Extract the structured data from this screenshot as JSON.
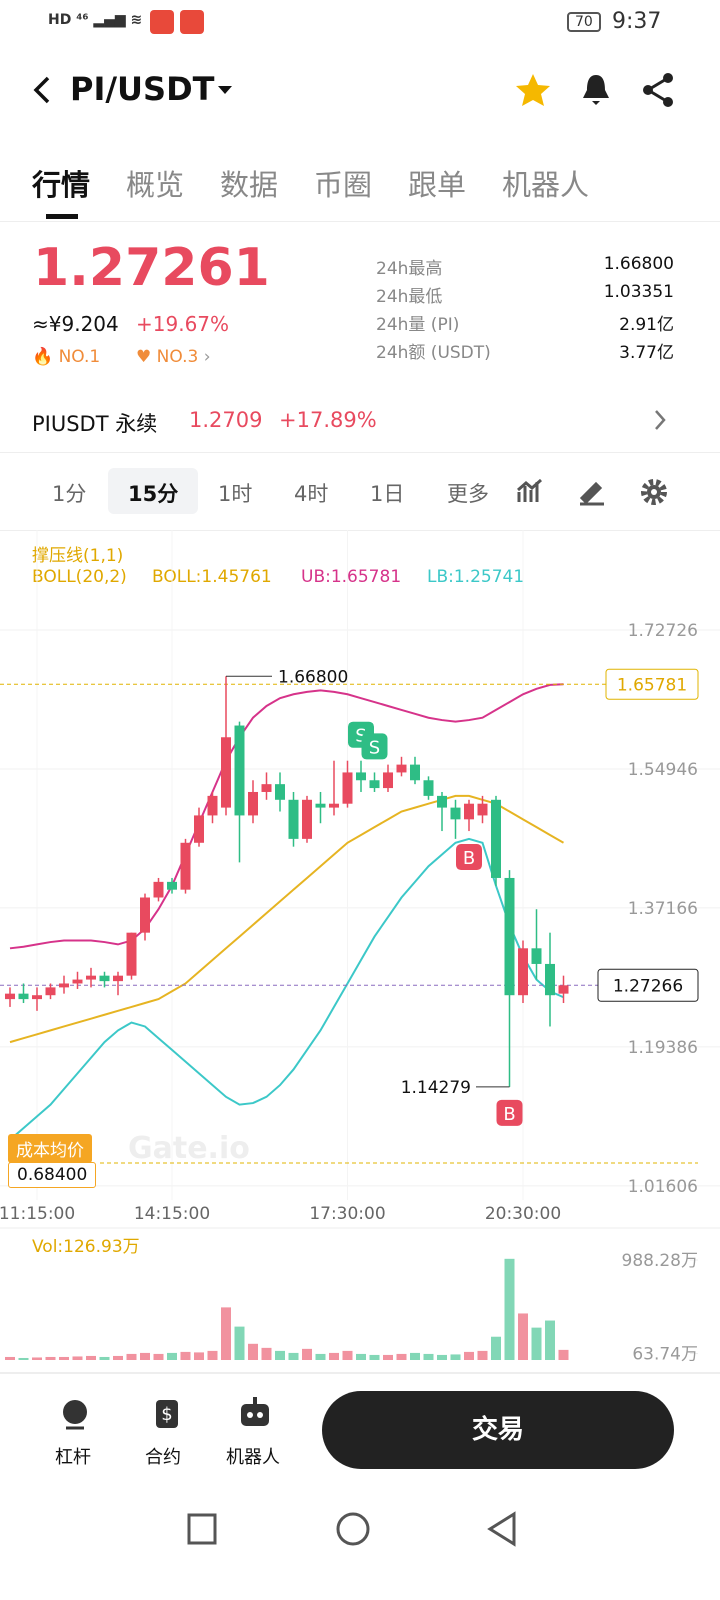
{
  "status_bar": {
    "time": "9:37",
    "battery": "70"
  },
  "header": {
    "pair": "PI/USDT"
  },
  "tabs": [
    "行情",
    "概览",
    "数据",
    "币圈",
    "跟单",
    "机器人"
  ],
  "price": {
    "last": "1.27261",
    "cny": "≈¥9.204",
    "change": "+19.67%",
    "rank1": "NO.1",
    "rank2": "NO.3"
  },
  "stats": [
    {
      "label": "24h最高",
      "value": "1.66800"
    },
    {
      "label": "24h最低",
      "value": "1.03351"
    },
    {
      "label": "24h量 (PI)",
      "value": "2.91亿"
    },
    {
      "label": "24h额 (USDT)",
      "value": "3.77亿"
    }
  ],
  "perpetual": {
    "name": "PIUSDT 永续",
    "price": "1.2709",
    "change": "+17.89%"
  },
  "intervals": [
    "1分",
    "15分",
    "1时",
    "4时",
    "1日",
    "更多"
  ],
  "indicators": {
    "support": "撑压线(1,1)",
    "boll": "BOLL(20,2)",
    "mid": "BOLL:1.45761",
    "ub": "UB:1.65781",
    "lb": "LB:1.25741"
  },
  "chart_data": {
    "type": "candlestick",
    "categories": [
      null,
      null,
      "11:15:00",
      null,
      null,
      null,
      null,
      null,
      null,
      null,
      null,
      null,
      "14:15:00",
      null,
      null,
      null,
      null,
      null,
      null,
      null,
      null,
      null,
      null,
      null,
      null,
      "17:30:00",
      null,
      null,
      null,
      null,
      null,
      null,
      null,
      null,
      null,
      null,
      null,
      null,
      "20:30:00",
      null,
      null,
      null
    ],
    "open": [
      1.255,
      1.262,
      1.255,
      1.26,
      1.27,
      1.275,
      1.28,
      1.285,
      1.278,
      1.285,
      1.34,
      1.385,
      1.405,
      1.395,
      1.455,
      1.49,
      1.5,
      1.605,
      1.49,
      1.52,
      1.53,
      1.51,
      1.46,
      1.505,
      1.5,
      1.505,
      1.545,
      1.535,
      1.525,
      1.545,
      1.555,
      1.535,
      1.515,
      1.5,
      1.485,
      1.49,
      1.51,
      1.41,
      1.26,
      1.32,
      1.3,
      1.262
    ],
    "high": [
      1.27,
      1.275,
      1.27,
      1.275,
      1.285,
      1.29,
      1.295,
      1.29,
      1.29,
      1.34,
      1.39,
      1.41,
      1.41,
      1.46,
      1.5,
      1.52,
      1.668,
      1.61,
      1.535,
      1.545,
      1.545,
      1.52,
      1.515,
      1.52,
      1.56,
      1.56,
      1.56,
      1.545,
      1.555,
      1.565,
      1.565,
      1.54,
      1.52,
      1.51,
      1.51,
      1.515,
      1.515,
      1.42,
      1.33,
      1.37,
      1.34,
      1.285
    ],
    "low": [
      1.245,
      1.25,
      1.24,
      1.255,
      1.262,
      1.268,
      1.27,
      1.27,
      1.26,
      1.28,
      1.33,
      1.38,
      1.39,
      1.39,
      1.45,
      1.48,
      1.49,
      1.43,
      1.48,
      1.51,
      1.495,
      1.45,
      1.455,
      1.48,
      1.49,
      1.5,
      1.52,
      1.52,
      1.52,
      1.54,
      1.53,
      1.51,
      1.47,
      1.46,
      1.47,
      1.48,
      1.4,
      1.14279,
      1.25,
      1.28,
      1.22,
      1.25
    ],
    "close": [
      1.262,
      1.255,
      1.26,
      1.27,
      1.275,
      1.28,
      1.285,
      1.278,
      1.285,
      1.34,
      1.385,
      1.405,
      1.395,
      1.455,
      1.49,
      1.515,
      1.59,
      1.49,
      1.52,
      1.53,
      1.51,
      1.46,
      1.51,
      1.5,
      1.505,
      1.545,
      1.535,
      1.525,
      1.545,
      1.555,
      1.535,
      1.515,
      1.5,
      1.485,
      1.505,
      1.505,
      1.41,
      1.26,
      1.32,
      1.3,
      1.26,
      1.27266
    ],
    "up_color": "#e84a5f",
    "down_color": "#2ebd85",
    "lines": [
      {
        "color": "#e6b422",
        "values": [
          1.2,
          1.205,
          1.21,
          1.215,
          1.22,
          1.225,
          1.23,
          1.235,
          1.24,
          1.245,
          1.25,
          1.255,
          1.265,
          1.275,
          1.29,
          1.305,
          1.32,
          1.335,
          1.35,
          1.365,
          1.38,
          1.395,
          1.41,
          1.425,
          1.44,
          1.455,
          1.465,
          1.475,
          1.485,
          1.495,
          1.5,
          1.505,
          1.51,
          1.515,
          1.515,
          1.51,
          1.505,
          1.495,
          1.485,
          1.475,
          1.465,
          1.455
        ]
      },
      {
        "color": "#d6338a",
        "values": [
          1.32,
          1.322,
          1.325,
          1.328,
          1.33,
          1.33,
          1.33,
          1.328,
          1.325,
          1.33,
          1.345,
          1.37,
          1.4,
          1.44,
          1.48,
          1.52,
          1.56,
          1.59,
          1.615,
          1.63,
          1.64,
          1.645,
          1.648,
          1.65,
          1.648,
          1.645,
          1.64,
          1.635,
          1.63,
          1.625,
          1.62,
          1.615,
          1.612,
          1.61,
          1.612,
          1.615,
          1.625,
          1.635,
          1.645,
          1.652,
          1.657,
          1.6578
        ]
      },
      {
        "color": "#3cc8c8",
        "values": [
          1.075,
          1.09,
          1.105,
          1.12,
          1.14,
          1.16,
          1.18,
          1.2,
          1.215,
          1.225,
          1.22,
          1.205,
          1.19,
          1.175,
          1.16,
          1.145,
          1.13,
          1.12,
          1.122,
          1.13,
          1.145,
          1.165,
          1.19,
          1.215,
          1.245,
          1.275,
          1.305,
          1.335,
          1.36,
          1.385,
          1.405,
          1.425,
          1.44,
          1.455,
          1.46,
          1.455,
          1.4,
          1.35,
          1.31,
          1.28,
          1.265,
          1.2574
        ]
      }
    ],
    "ylim": [
      0.998,
      1.7656
    ],
    "yticks": [
      1.01606,
      1.19386,
      1.37166,
      1.54946,
      1.72726
    ],
    "high_mark": {
      "value": 1.668,
      "label": "1.66800"
    },
    "low_mark": 1.14279,
    "last_price": 1.27266,
    "ub_price": 1.65781,
    "trades": [
      {
        "candle": 26,
        "label": "S"
      },
      {
        "candle": 27,
        "label": "S"
      },
      {
        "candle": 34,
        "label": "B"
      },
      {
        "candle": 37,
        "label": "B"
      }
    ],
    "cost_avg": {
      "title": "成本均价",
      "value": "0.68400"
    },
    "watermark": "Gate.io",
    "volume_label": "Vol:126.93万",
    "volume": [
      30,
      20,
      25,
      30,
      30,
      35,
      40,
      30,
      40,
      60,
      70,
      60,
      70,
      80,
      75,
      90,
      520,
      330,
      160,
      120,
      90,
      70,
      110,
      60,
      70,
      90,
      60,
      50,
      50,
      60,
      70,
      60,
      50,
      55,
      80,
      90,
      230,
      1000,
      460,
      320,
      390,
      100
    ],
    "volume_ylim": [
      0,
      1186
    ],
    "volume_ticks": [
      {
        "value": 63.74,
        "label": "63.74万"
      },
      {
        "value": 988.28,
        "label": "988.28万"
      }
    ]
  },
  "bottom_bar": {
    "leverage": "杠杆",
    "contract": "合约",
    "bot": "机器人",
    "trade": "交易"
  }
}
